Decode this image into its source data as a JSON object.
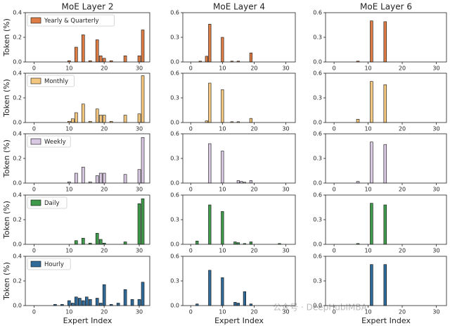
{
  "chart_data": [
    {
      "type": "bar",
      "title": "MoE Layer 2",
      "ylabel": "Token (%)",
      "legend": "upper left",
      "x": [
        10,
        12,
        14,
        16,
        18,
        19,
        20,
        22,
        26,
        30,
        31
      ],
      "series": [
        {
          "name": "Yearly & Quarterly",
          "color": "#dd7d45",
          "values": [
            0.01,
            0.12,
            0.22,
            0.01,
            0.18,
            0.05,
            0.03,
            0.01,
            0.05,
            0.05,
            0.26
          ]
        }
      ],
      "xlim": [
        -2.5,
        33
      ],
      "ylim": [
        0,
        0.4
      ],
      "xticks": [
        0,
        10,
        20,
        30
      ],
      "yticks": [
        {
          "value": 0,
          "label": "0.0"
        },
        0.2,
        0.4
      ]
    },
    {
      "type": "bar",
      "title": "MoE Layer 4",
      "x": [
        3,
        5,
        6,
        10,
        13,
        15,
        19
      ],
      "series": [
        {
          "color": "#dd7d45",
          "values": [
            0.01,
            0.07,
            0.46,
            0.3,
            0.01,
            0.01,
            0.11
          ]
        }
      ],
      "xlim": [
        -2.5,
        33
      ],
      "ylim": [
        0,
        0.6
      ],
      "xticks": [
        0,
        10,
        20,
        30
      ],
      "yticks": [
        {
          "value": 0,
          "label": "0.0"
        },
        0.3,
        0.6
      ]
    },
    {
      "type": "bar",
      "title": "MoE Layer 6",
      "x": [
        7,
        11,
        15
      ],
      "series": [
        {
          "color": "#dd7d45",
          "values": [
            0.01,
            0.5,
            0.49
          ]
        }
      ],
      "xlim": [
        -2.5,
        33
      ],
      "ylim": [
        0,
        0.6
      ],
      "xticks": [
        0,
        10,
        20,
        30
      ],
      "yticks": [
        {
          "value": 0,
          "label": "0.0"
        },
        0.3,
        0.6
      ]
    },
    {
      "type": "bar",
      "ylabel": "Token (%)",
      "legend": "upper left",
      "x": [
        10,
        11,
        12,
        14,
        16,
        18,
        19,
        20,
        22,
        26,
        30,
        31
      ],
      "series": [
        {
          "name": "Monthly",
          "color": "#f3c77f",
          "values": [
            0.01,
            0.03,
            0.08,
            0.15,
            0.01,
            0.11,
            0.06,
            0.06,
            0.01,
            0.06,
            0.07,
            0.38
          ]
        }
      ],
      "xlim": [
        -2.5,
        33
      ],
      "ylim": [
        0,
        0.4
      ],
      "xticks": [
        0,
        10,
        20,
        30
      ],
      "yticks": [
        {
          "value": 0,
          "label": "0.0"
        },
        0.2,
        0.4
      ]
    },
    {
      "type": "bar",
      "x": [
        5,
        6,
        10,
        13,
        15,
        19
      ],
      "series": [
        {
          "color": "#f3c77f",
          "values": [
            0.02,
            0.48,
            0.4,
            0.01,
            0.01,
            0.05
          ]
        }
      ],
      "xlim": [
        -2.5,
        33
      ],
      "ylim": [
        0,
        0.6
      ],
      "xticks": [
        0,
        10,
        20,
        30
      ],
      "yticks": [
        {
          "value": 0,
          "label": "0.0"
        },
        0.3,
        0.6
      ]
    },
    {
      "type": "bar",
      "x": [
        7,
        11,
        15
      ],
      "series": [
        {
          "color": "#f3c77f",
          "values": [
            0.04,
            0.5,
            0.46
          ]
        }
      ],
      "xlim": [
        -2.5,
        33
      ],
      "ylim": [
        0,
        0.6
      ],
      "xticks": [
        0,
        10,
        20,
        30
      ],
      "yticks": [
        {
          "value": 0,
          "label": "0.0"
        },
        0.3,
        0.6
      ]
    },
    {
      "type": "bar",
      "ylabel": "Token (%)",
      "legend": "upper left",
      "x": [
        10,
        12,
        14,
        16,
        18,
        19,
        20,
        26,
        30,
        31
      ],
      "series": [
        {
          "name": "Weekly",
          "color": "#d8c8e2",
          "values": [
            0.01,
            0.08,
            0.13,
            0.01,
            0.06,
            0.08,
            0.08,
            0.07,
            0.11,
            0.37
          ]
        }
      ],
      "xlim": [
        -2.5,
        33
      ],
      "ylim": [
        0,
        0.4
      ],
      "xticks": [
        0,
        10,
        20,
        30
      ],
      "yticks": [
        {
          "value": 0,
          "label": "0.0"
        },
        0.2,
        0.4
      ]
    },
    {
      "type": "bar",
      "x": [
        6,
        10,
        15,
        16,
        17,
        19
      ],
      "series": [
        {
          "color": "#d8c8e2",
          "values": [
            0.48,
            0.39,
            0.03,
            0.02,
            0.01,
            0.03
          ]
        }
      ],
      "xlim": [
        -2.5,
        33
      ],
      "ylim": [
        0,
        0.6
      ],
      "xticks": [
        0,
        10,
        20,
        30
      ],
      "yticks": [
        {
          "value": 0,
          "label": "0.0"
        },
        0.3,
        0.6
      ]
    },
    {
      "type": "bar",
      "x": [
        7,
        11,
        15
      ],
      "series": [
        {
          "color": "#d8c8e2",
          "values": [
            0.02,
            0.5,
            0.47
          ]
        }
      ],
      "xlim": [
        -2.5,
        33
      ],
      "ylim": [
        0,
        0.6
      ],
      "xticks": [
        0,
        10,
        20,
        30
      ],
      "yticks": [
        {
          "value": 0,
          "label": "0.0"
        },
        0.3,
        0.6
      ]
    },
    {
      "type": "bar",
      "ylabel": "Token (%)",
      "legend": "upper left",
      "x": [
        12,
        14,
        16,
        18,
        19,
        20,
        26,
        30,
        31
      ],
      "series": [
        {
          "name": "Daily",
          "color": "#3f9a4c",
          "values": [
            0.03,
            0.05,
            0.01,
            0.09,
            0.04,
            0.01,
            0.02,
            0.33,
            0.37
          ]
        }
      ],
      "xlim": [
        -2.5,
        33
      ],
      "ylim": [
        0,
        0.4
      ],
      "xticks": [
        0,
        10,
        20,
        30
      ],
      "yticks": [
        {
          "value": 0,
          "label": "0.0"
        },
        0.2,
        0.4
      ]
    },
    {
      "type": "bar",
      "x": [
        2,
        6,
        10,
        14,
        15,
        17,
        19,
        28
      ],
      "series": [
        {
          "color": "#3f9a4c",
          "values": [
            0.04,
            0.48,
            0.4,
            0.03,
            0.02,
            0.01,
            0.03,
            0.01
          ]
        }
      ],
      "xlim": [
        -2.5,
        33
      ],
      "ylim": [
        0,
        0.6
      ],
      "xticks": [
        0,
        10,
        20,
        30
      ],
      "yticks": [
        {
          "value": 0,
          "label": "0.0"
        },
        0.3,
        0.6
      ]
    },
    {
      "type": "bar",
      "x": [
        7,
        11,
        15
      ],
      "series": [
        {
          "color": "#3f9a4c",
          "values": [
            0.01,
            0.5,
            0.48
          ]
        }
      ],
      "xlim": [
        -2.5,
        33
      ],
      "ylim": [
        0,
        0.6
      ],
      "xticks": [
        0,
        10,
        20,
        30
      ],
      "yticks": [
        {
          "value": 0,
          "label": "0.0"
        },
        0.3,
        0.6
      ]
    },
    {
      "type": "bar",
      "ylabel": "Token (%)",
      "xlabel": "Expert Index",
      "legend": "upper left",
      "x": [
        6,
        8,
        10,
        11,
        12,
        13,
        14,
        15,
        16,
        18,
        19,
        20,
        22,
        24,
        26,
        28,
        30,
        31
      ],
      "series": [
        {
          "name": "Hourly",
          "color": "#2f6a99",
          "values": [
            0.01,
            0.01,
            0.04,
            0.02,
            0.07,
            0.06,
            0.04,
            0.07,
            0.05,
            0.06,
            0.02,
            0.17,
            0.01,
            0.02,
            0.13,
            0.05,
            0.05,
            0.19
          ]
        }
      ],
      "xlim": [
        -2.5,
        33
      ],
      "ylim": [
        0,
        0.4
      ],
      "xticks": [
        0,
        10,
        20,
        30
      ],
      "yticks": [
        {
          "value": 0,
          "label": "0.0"
        },
        0.2,
        0.4
      ]
    },
    {
      "type": "bar",
      "xlabel": "Expert Index",
      "x": [
        2,
        6,
        10,
        14,
        15,
        17,
        19
      ],
      "series": [
        {
          "color": "#2f6a99",
          "values": [
            0.02,
            0.43,
            0.34,
            0.04,
            0.03,
            0.17,
            0.02
          ]
        }
      ],
      "xlim": [
        -2.5,
        33
      ],
      "ylim": [
        0,
        0.6
      ],
      "xticks": [
        0,
        10,
        20,
        30
      ],
      "yticks": [
        {
          "value": 0,
          "label": "0.0"
        },
        0.3,
        0.6
      ]
    },
    {
      "type": "bar",
      "xlabel": "Expert Index",
      "x": [
        11,
        15
      ],
      "series": [
        {
          "color": "#2f6a99",
          "values": [
            0.5,
            0.5
          ]
        }
      ],
      "xlim": [
        -2.5,
        33
      ],
      "ylim": [
        0,
        0.6
      ],
      "xticks": [
        0,
        10,
        20,
        30
      ],
      "yticks": [
        {
          "value": 0,
          "label": "0.0"
        },
        0.3,
        0.6
      ]
    }
  ],
  "watermark": "公众号 · DeepHubIMBA"
}
